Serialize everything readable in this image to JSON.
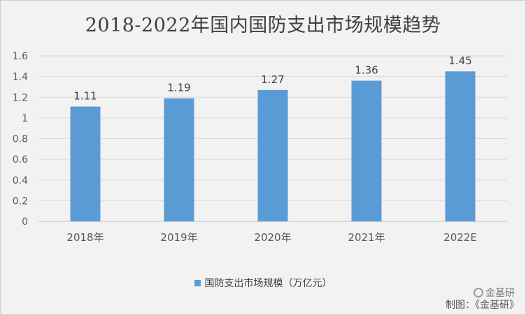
{
  "chart_data": {
    "type": "bar",
    "title": "2018-2022年国内国防支出市场规模趋势",
    "categories": [
      "2018年",
      "2019年",
      "2020年",
      "2021年",
      "2022E"
    ],
    "series": [
      {
        "name": "国防支出市场规模（万亿元）",
        "values": [
          1.11,
          1.19,
          1.27,
          1.36,
          1.45
        ],
        "color": "#5b9bd5"
      }
    ],
    "data_labels": [
      "1.11",
      "1.19",
      "1.27",
      "1.36",
      "1.45"
    ],
    "ylim": [
      0,
      1.6
    ],
    "yticks": [
      0,
      0.2,
      0.4,
      0.6,
      0.8,
      1,
      1.2,
      1.4,
      1.6
    ],
    "ytick_labels": [
      "0",
      "0.2",
      "0.4",
      "0.6",
      "0.8",
      "1",
      "1.2",
      "1.4",
      "1.6"
    ],
    "grid": true,
    "legend_position": "bottom"
  },
  "watermark": "金基研",
  "credit": "制图：《金基研》"
}
